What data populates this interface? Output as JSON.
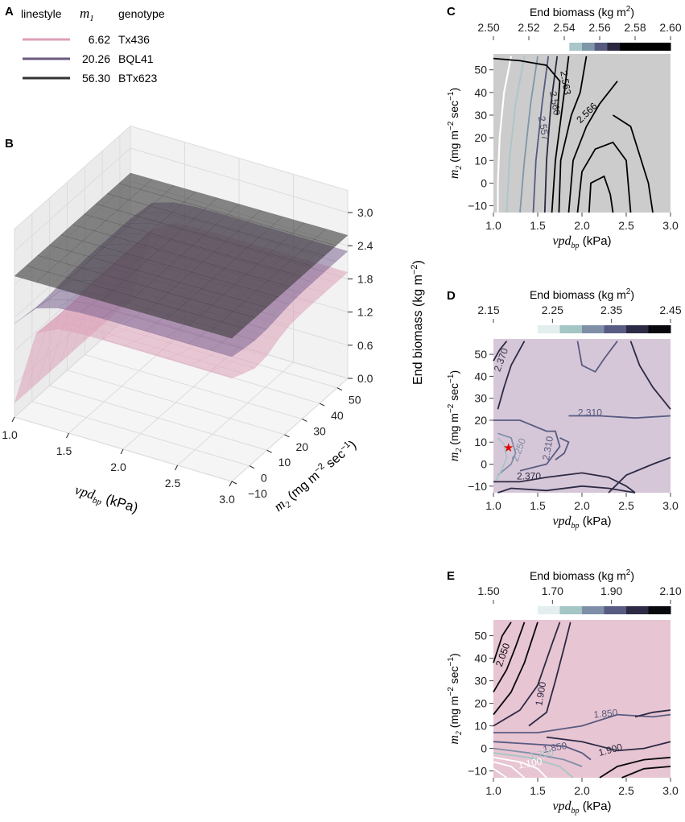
{
  "legend": {
    "headers": {
      "linestyle": "linestyle",
      "m1": "m",
      "m1_sub": "1",
      "genotype": "genotype"
    },
    "rows": [
      {
        "m1": "6.62",
        "genotype": "Tx436",
        "color": "#dca0b8"
      },
      {
        "m1": "20.26",
        "genotype": "BQL41",
        "color": "#6b5a7e"
      },
      {
        "m1": "56.30",
        "genotype": "BTx623",
        "color": "#333333"
      }
    ]
  },
  "panels": {
    "A": "A",
    "B": "B",
    "C": "C",
    "D": "D",
    "E": "E"
  },
  "colors": {
    "gray_panel_bg": "#cccccc",
    "purple_panel_bg": "#d6c7d8",
    "pink_panel_bg": "#e8c5d2",
    "surface_pink": "#dca0b8",
    "surface_purple": "#7c6591",
    "surface_dark": "#3a3a3a",
    "star": "#e00000"
  },
  "chart_data": [
    {
      "panel": "B",
      "type": "surface3d",
      "xlabel": "vpd",
      "xlabel_sub": "bp",
      "xlabel_unit": " (kPa)",
      "ylabel_sym": "m",
      "ylabel_sub": "2",
      "ylabel_unit": " (mg m",
      "ylabel_exp": "−2",
      "ylabel_unit2": " sec",
      "ylabel_exp2": "−1",
      "ylabel_close": ")",
      "zlabel": "End biomass (kg m",
      "zlabel_exp": "−2",
      "zlabel_close": ")",
      "x_ticks": [
        "1.0",
        "1.5",
        "2.0",
        "2.5",
        "3.0"
      ],
      "y_ticks": [
        "−10",
        "0",
        "10",
        "20",
        "30",
        "40",
        "50"
      ],
      "z_ticks": [
        "0.0",
        "0.6",
        "1.2",
        "1.8",
        "2.4",
        "3.0"
      ],
      "xlim": [
        1.0,
        3.0
      ],
      "ylim": [
        -10,
        56
      ],
      "zlim": [
        0.0,
        3.0
      ],
      "series": [
        {
          "name": "Tx436",
          "color": "#dca0b8"
        },
        {
          "name": "BQL41",
          "color": "#7c6591"
        },
        {
          "name": "BTx623",
          "color": "#3a3a3a"
        }
      ]
    },
    {
      "panel": "C",
      "type": "contour",
      "colorbar_title": "End biomass (kg m",
      "colorbar_exp": "2",
      "colorbar_close": ")",
      "colorbar_ticks": [
        "2.50",
        "2.52",
        "2.54",
        "2.56",
        "2.58",
        "2.60"
      ],
      "colorbar_colors": [
        "#ffffff",
        "#ffffff",
        "#ffffff",
        "#ffffff",
        "#ffffff",
        "#ffffff",
        "#a9c6c8",
        "#7e96a8",
        "#555a7e",
        "#2a2840",
        "#000000",
        "#000000",
        "#000000",
        "#000000"
      ],
      "xlabel": "vpd",
      "xlabel_sub": "bp",
      "xlabel_unit": " (kPa)",
      "ylabel_sym": "m",
      "ylabel_sub": "2",
      "ylabel_unit": " (mg m",
      "ylabel_exp": "−2",
      "ylabel_unit2": " sec",
      "ylabel_exp2": "−1",
      "ylabel_close": ")",
      "x_ticks": [
        "1.0",
        "1.5",
        "2.0",
        "2.5",
        "3.0"
      ],
      "y_ticks": [
        "−10",
        "0",
        "10",
        "20",
        "30",
        "40",
        "50"
      ],
      "xlim": [
        1.0,
        3.0
      ],
      "ylim": [
        -13,
        57
      ],
      "contour_labels": [
        {
          "text": "2.563",
          "x": 1.78,
          "y": 44,
          "rot": 80,
          "color": "#000000"
        },
        {
          "text": "2.560",
          "x": 1.66,
          "y": 35,
          "rot": 80,
          "color": "#333333"
        },
        {
          "text": "2.557",
          "x": 1.53,
          "y": 24,
          "rot": 80,
          "color": "#444466"
        },
        {
          "text": "2.566",
          "x": 2.08,
          "y": 30,
          "rot": -45,
          "color": "#000000"
        }
      ]
    },
    {
      "panel": "D",
      "type": "contour",
      "colorbar_title": "End biomass (kg m",
      "colorbar_exp": "2",
      "colorbar_close": ")",
      "colorbar_ticks": [
        "2.15",
        "2.25",
        "2.35",
        "2.45"
      ],
      "colorbar_colors": [
        "#ffffff",
        "#ffffff",
        "#e3eeee",
        "#a4c6c5",
        "#7f8fa7",
        "#585b82",
        "#2c2a45",
        "#08080f"
      ],
      "xlabel": "vpd",
      "xlabel_sub": "bp",
      "xlabel_unit": " (kPa)",
      "ylabel_sym": "m",
      "ylabel_sub": "2",
      "ylabel_unit": " (mg m",
      "ylabel_exp": "−2",
      "ylabel_unit2": " sec",
      "ylabel_exp2": "−1",
      "ylabel_close": ")",
      "x_ticks": [
        "1.0",
        "1.5",
        "2.0",
        "2.5",
        "3.0"
      ],
      "y_ticks": [
        "−10",
        "0",
        "10",
        "20",
        "30",
        "40",
        "50"
      ],
      "xlim": [
        1.0,
        3.0
      ],
      "ylim": [
        -13,
        57
      ],
      "contour_labels": [
        {
          "text": "2.370",
          "x": 1.12,
          "y": 47,
          "rot": -70,
          "color": "#333344"
        },
        {
          "text": "2.310",
          "x": 2.09,
          "y": 22,
          "rot": 0,
          "color": "#555a7e"
        },
        {
          "text": "2.310",
          "x": 1.65,
          "y": 7,
          "rot": -80,
          "color": "#555a7e"
        },
        {
          "text": "2.370",
          "x": 1.4,
          "y": -7,
          "rot": 0,
          "color": "#2c2a45"
        },
        {
          "text": "2.250",
          "x": 1.32,
          "y": 6,
          "rot": -70,
          "color": "#7f8fa7"
        }
      ],
      "star": {
        "x": 1.17,
        "y": 7.5
      }
    },
    {
      "panel": "E",
      "type": "contour",
      "colorbar_title": "End biomass (kg m",
      "colorbar_exp": "2",
      "colorbar_close": ")",
      "colorbar_ticks": [
        "1.50",
        "1.70",
        "1.90",
        "2.10"
      ],
      "colorbar_colors": [
        "#ffffff",
        "#ffffff",
        "#e4eeee",
        "#a4c6c5",
        "#7f8fa7",
        "#585b82",
        "#2c2a45",
        "#08080f"
      ],
      "xlabel": "vpd",
      "xlabel_sub": "bp",
      "xlabel_unit": " (kPa)",
      "ylabel_sym": "m",
      "ylabel_sub": "2",
      "ylabel_unit": " (mg m",
      "ylabel_exp": "−2",
      "ylabel_unit2": " sec",
      "ylabel_exp2": "−1",
      "ylabel_close": ")",
      "x_ticks": [
        "1.0",
        "1.5",
        "2.0",
        "2.5",
        "3.0"
      ],
      "y_ticks": [
        "−10",
        "0",
        "10",
        "20",
        "30",
        "40",
        "50"
      ],
      "xlim": [
        1.0,
        3.0
      ],
      "ylim": [
        -13,
        57
      ],
      "contour_labels": [
        {
          "text": "2.050",
          "x": 1.14,
          "y": 41,
          "rot": -70,
          "color": "#08080f"
        },
        {
          "text": "1.900",
          "x": 1.57,
          "y": 24,
          "rot": -80,
          "color": "#2c2a45"
        },
        {
          "text": "1.850",
          "x": 2.27,
          "y": 14,
          "rot": -5,
          "color": "#555a7e"
        },
        {
          "text": "1.850",
          "x": 1.7,
          "y": -1,
          "rot": -10,
          "color": "#585b82"
        },
        {
          "text": "1.900",
          "x": 2.33,
          "y": -2,
          "rot": -15,
          "color": "#2c2a45"
        },
        {
          "text": "1.700",
          "x": 1.55,
          "y": -4,
          "rot": -10,
          "color": "#a4c6c5"
        },
        {
          "text": "1.100",
          "x": 1.42,
          "y": -8,
          "rot": -10,
          "color": "#ffffff"
        }
      ]
    }
  ]
}
